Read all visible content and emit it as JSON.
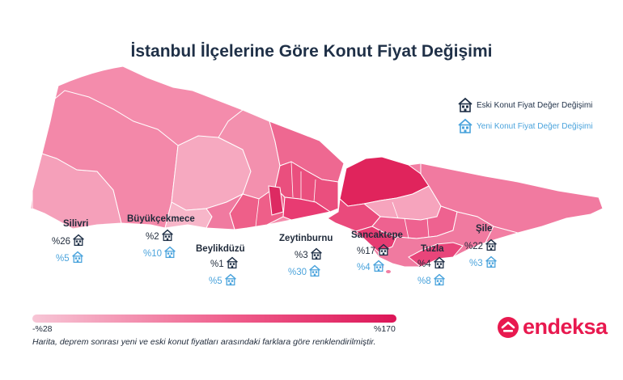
{
  "title": "İstanbul İlçelerine Göre Konut Fiyat Değişimi",
  "legend": {
    "old_label": "Eski Konut Fiyat Değer Değişimi",
    "new_label": "Yeni Konut Fiyat Değer Değişimi",
    "old_icon": "house-icon",
    "new_icon": "house-icon",
    "old_color": "#1f3047",
    "new_color": "#4aa3dc"
  },
  "districts": [
    {
      "name": "Silivri",
      "old": "%26",
      "new": "%5"
    },
    {
      "name": "Büyükçekmece",
      "old": "%2",
      "new": "%10"
    },
    {
      "name": "Beylikdüzü",
      "old": "%1",
      "new": "%5"
    },
    {
      "name": "Zeytinburnu",
      "old": "%3",
      "new": "%30"
    },
    {
      "name": "Sancaktepe",
      "old": "%17",
      "new": "%4"
    },
    {
      "name": "Tuzla",
      "old": "%4",
      "new": "%8"
    },
    {
      "name": "Şile",
      "old": "%22",
      "new": "%3"
    }
  ],
  "scale": {
    "min": "-%28",
    "max": "%170",
    "min_color": "#f7c6d6",
    "max_color": "#dc1557"
  },
  "footnote": "Harita, deprem sonrası yeni ve eski konut fiyatları arasındaki farklara göre renklendirilmiştir.",
  "logo": {
    "text": "endeksa",
    "color": "#e8194f"
  }
}
